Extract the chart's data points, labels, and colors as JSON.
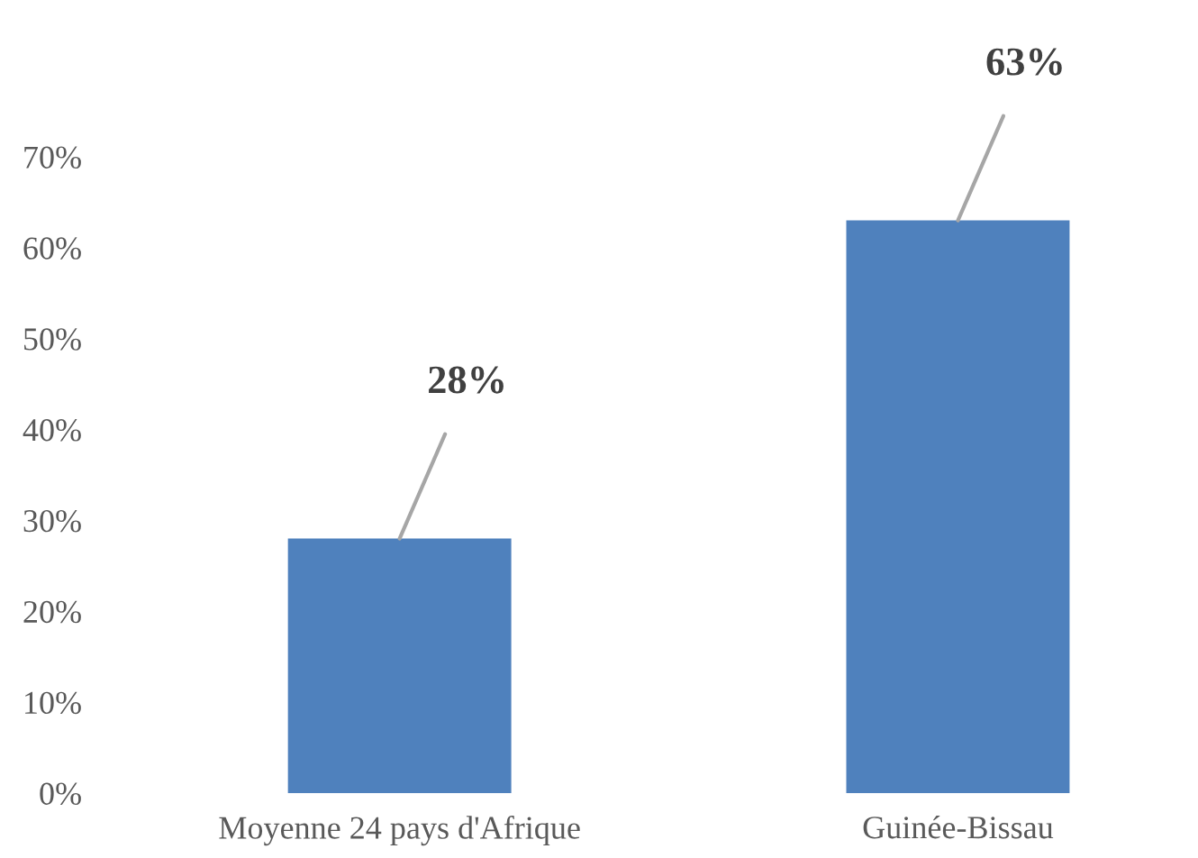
{
  "chart_data": {
    "type": "bar",
    "categories": [
      "Moyenne 24 pays d'Afrique",
      "Guinée-Bissau"
    ],
    "values": [
      28,
      63
    ],
    "color": "#4f81bd",
    "value_labels": [
      "28%",
      "63%"
    ],
    "ylim": [
      0,
      70
    ],
    "yticks": [
      {
        "value": 0,
        "label": "0%"
      },
      {
        "value": 10,
        "label": "10%"
      },
      {
        "value": 20,
        "label": "20%"
      },
      {
        "value": 30,
        "label": "30%"
      },
      {
        "value": 40,
        "label": "40%"
      },
      {
        "value": 50,
        "label": "50%"
      },
      {
        "value": 60,
        "label": "60%"
      },
      {
        "value": 70,
        "label": "70%"
      }
    ],
    "grid": false
  }
}
